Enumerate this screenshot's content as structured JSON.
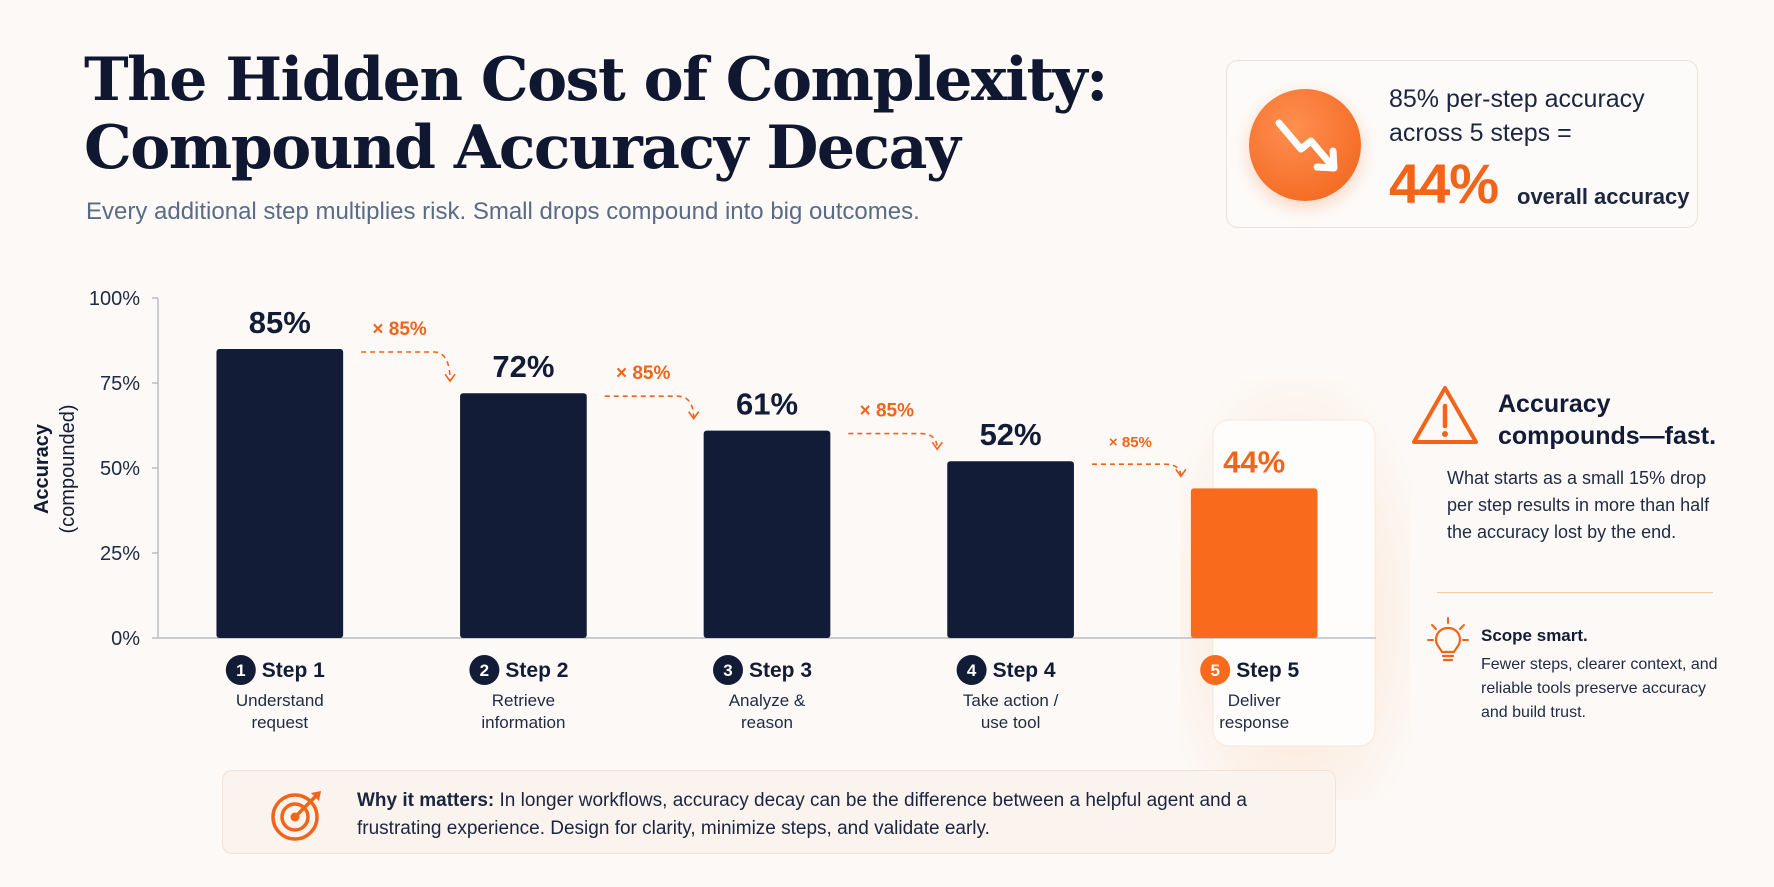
{
  "header": {
    "title_line1": "The Hidden Cost of Complexity:",
    "title_line2": "Compound Accuracy Decay",
    "subtitle": "Every additional step multiplies risk. Small drops compound into big outcomes."
  },
  "stat_card": {
    "icon": "trend-down-icon",
    "line1": "85% per-step accuracy",
    "line2": "across 5 steps =",
    "big_value": "44%",
    "big_label": "overall accuracy"
  },
  "chart_data": {
    "type": "bar",
    "ylabel": "Accuracy",
    "ylabel_sub": "(compounded)",
    "ylim": [
      0,
      100
    ],
    "yticks": [
      0,
      25,
      50,
      75,
      100
    ],
    "ytick_labels": [
      "0%",
      "25%",
      "50%",
      "75%",
      "100%"
    ],
    "categories": [
      "Step 1",
      "Step 2",
      "Step 3",
      "Step 4",
      "Step 5"
    ],
    "step_numbers": [
      "1",
      "2",
      "3",
      "4",
      "5"
    ],
    "descriptions": [
      [
        "Understand",
        "request"
      ],
      [
        "Retrieve",
        "information"
      ],
      [
        "Analyze &",
        "reason"
      ],
      [
        "Take action /",
        "use tool"
      ],
      [
        "Deliver",
        "response"
      ]
    ],
    "values": [
      85,
      72,
      61,
      52,
      44
    ],
    "value_labels": [
      "85%",
      "72%",
      "61%",
      "52%",
      "44%"
    ],
    "multipliers": [
      "× 85%",
      "× 85%",
      "× 85%",
      "× 85%"
    ],
    "highlight_index": 4,
    "colors": {
      "bar": "#121c36",
      "highlight": "#fa6a1c",
      "accent": "#f26419",
      "axis": "#b9bdc6"
    }
  },
  "side_panel": {
    "icon": "warning-triangle-icon",
    "heading_line1": "Accuracy",
    "heading_line2": "compounds—fast.",
    "body": "What starts as a small 15% drop per step results in more than half the accuracy lost by the end.",
    "tip_icon": "lightbulb-icon",
    "tip_heading": "Scope smart.",
    "tip_body": "Fewer steps, clearer context, and reliable tools preserve accuracy and build trust."
  },
  "why_box": {
    "icon": "target-icon",
    "label": "Why it matters:",
    "text": " In longer workflows, accuracy decay can be the difference between a helpful agent and a frustrating experience. Design for clarity, minimize steps, and validate early."
  }
}
